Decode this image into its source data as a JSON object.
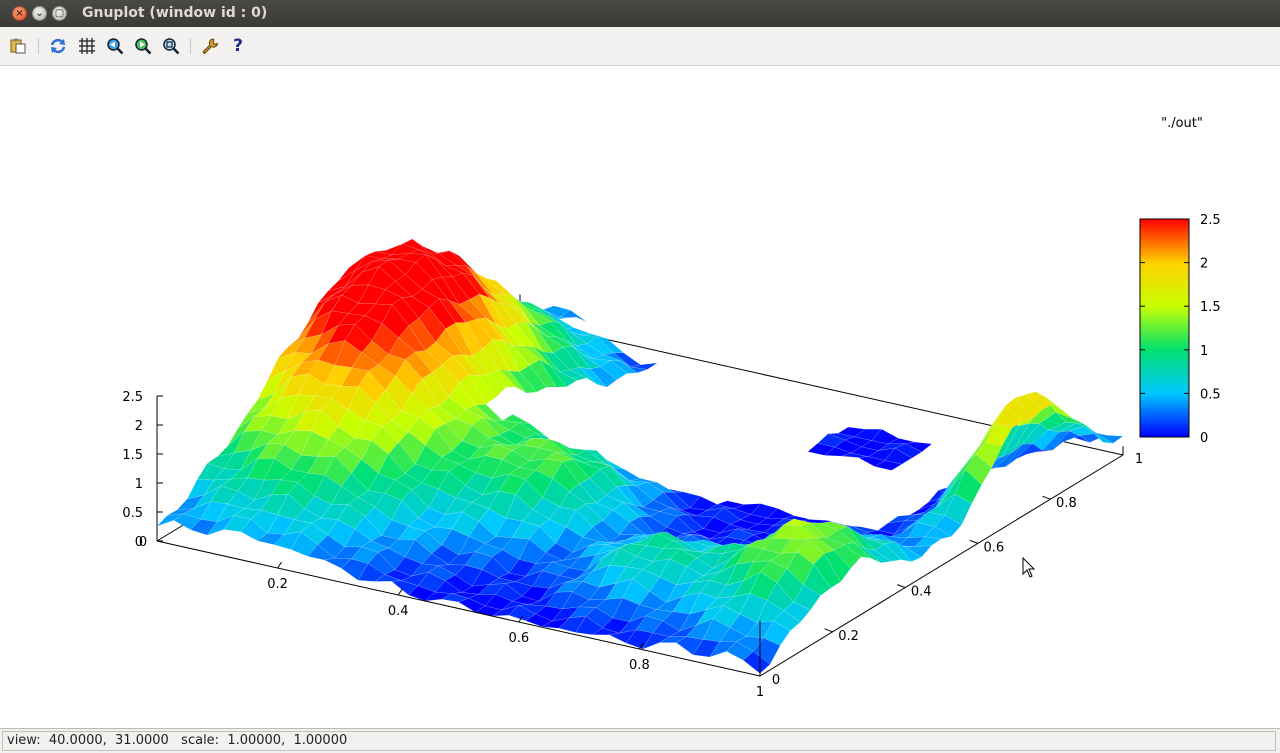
{
  "window": {
    "title": "Gnuplot (window id : 0)",
    "close_icon": "×",
    "minimize_icon": "⌄",
    "maximize_icon": "▢"
  },
  "toolbar": {
    "items": [
      {
        "name": "copy-clipboard-icon"
      },
      {
        "name": "replot-icon"
      },
      {
        "name": "grid-icon"
      },
      {
        "name": "previous-zoom-icon"
      },
      {
        "name": "next-zoom-icon"
      },
      {
        "name": "autoscale-icon"
      },
      {
        "name": "configure-icon"
      },
      {
        "name": "help-icon"
      }
    ],
    "help_glyph": "?"
  },
  "statusbar": {
    "text": "view:  40.0000,  31.0000   scale:  1.00000,  1.00000"
  },
  "chart_data": {
    "type": "surface",
    "legend": "\"./out\"",
    "legend_position": "top-right",
    "x_ticks": [
      "0",
      "0.2",
      "0.4",
      "0.6",
      "0.8",
      "1"
    ],
    "y_ticks": [
      "0",
      "0.2",
      "0.4",
      "0.6",
      "0.8",
      "1"
    ],
    "z_ticks": [
      "0",
      "0.5",
      "1",
      "1.5",
      "2",
      "2.5"
    ],
    "xlim": [
      0,
      1
    ],
    "ylim": [
      0,
      1
    ],
    "zlim": [
      0,
      2.5
    ],
    "colorbar": {
      "ticks": [
        "0",
        "0.5",
        "1",
        "1.5",
        "2",
        "2.5"
      ],
      "range": [
        0,
        2.5
      ],
      "colors": [
        "#0000ff",
        "#00c8ff",
        "#00e070",
        "#c8ff00",
        "#ffd000",
        "#ff0000"
      ]
    },
    "view": [
      40,
      31
    ]
  }
}
